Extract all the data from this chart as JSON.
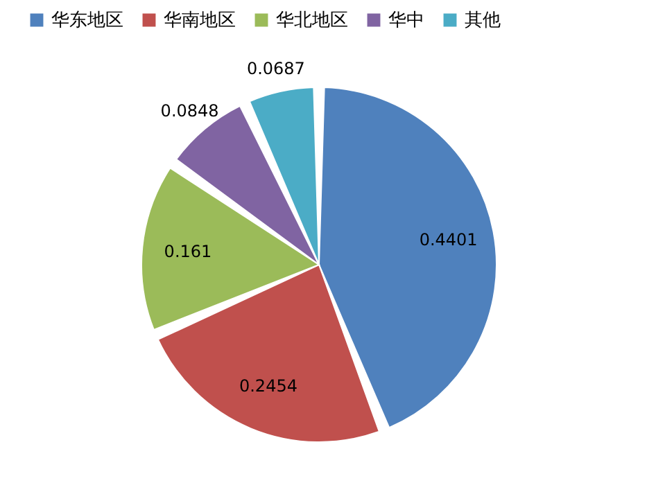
{
  "chart_data": {
    "type": "pie",
    "categories": [
      "华东地区",
      "华南地区",
      "华北地区",
      "华中",
      "其他"
    ],
    "values": [
      0.4401,
      0.2454,
      0.161,
      0.0848,
      0.0687
    ],
    "colors": [
      "#4f81bd",
      "#c0504d",
      "#9bbb59",
      "#8064a2",
      "#4bacc6"
    ],
    "data_labels": true,
    "legend": "top"
  }
}
